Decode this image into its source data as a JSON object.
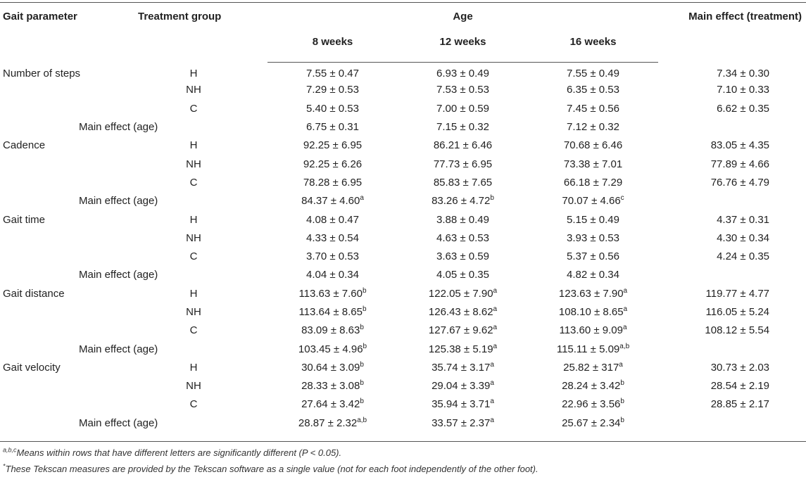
{
  "header": {
    "col_param": "Gait parameter",
    "col_group": "Treatment group",
    "col_age": "Age",
    "col_main": "Main effect (treatment)",
    "weeks": [
      "8 weeks",
      "12 weeks",
      "16 weeks"
    ]
  },
  "rows": [
    {
      "param": "Number of steps",
      "group": "H",
      "v": [
        [
          "7.55 ± 0.47",
          ""
        ],
        [
          "6.93 ± 0.49",
          ""
        ],
        [
          "7.55 ± 0.49",
          ""
        ]
      ],
      "main": "7.34 ± 0.30"
    },
    {
      "param": "",
      "group": "NH",
      "v": [
        [
          "7.29 ± 0.53",
          ""
        ],
        [
          "7.53 ± 0.53",
          ""
        ],
        [
          "6.35 ± 0.53",
          ""
        ]
      ],
      "main": "7.10 ± 0.33"
    },
    {
      "param": "",
      "group": "C",
      "v": [
        [
          "5.40 ± 0.53",
          ""
        ],
        [
          "7.00 ± 0.59",
          ""
        ],
        [
          "7.45 ± 0.56",
          ""
        ]
      ],
      "main": "6.62 ± 0.35"
    },
    {
      "age_label": "Main effect (age)",
      "v": [
        [
          "6.75 ± 0.31",
          ""
        ],
        [
          "7.15 ± 0.32",
          ""
        ],
        [
          "7.12 ± 0.32",
          ""
        ]
      ],
      "main": ""
    },
    {
      "param": "Cadence",
      "group": "H",
      "v": [
        [
          "92.25 ± 6.95",
          ""
        ],
        [
          "86.21 ± 6.46",
          ""
        ],
        [
          "70.68 ± 6.46",
          ""
        ]
      ],
      "main": "83.05 ± 4.35"
    },
    {
      "param": "",
      "group": "NH",
      "v": [
        [
          "92.25 ± 6.26",
          ""
        ],
        [
          "77.73 ± 6.95",
          ""
        ],
        [
          "73.38 ± 7.01",
          ""
        ]
      ],
      "main": "77.89 ± 4.66"
    },
    {
      "param": "",
      "group": "C",
      "v": [
        [
          "78.28 ± 6.95",
          ""
        ],
        [
          "85.83 ± 7.65",
          ""
        ],
        [
          "66.18 ± 7.29",
          ""
        ]
      ],
      "main": "76.76 ± 4.79"
    },
    {
      "age_label": "Main effect (age)",
      "v": [
        [
          "84.37 ± 4.60",
          "a"
        ],
        [
          "83.26 ± 4.72",
          "b"
        ],
        [
          "70.07 ± 4.66",
          "c"
        ]
      ],
      "main": ""
    },
    {
      "param": "Gait time",
      "group": "H",
      "v": [
        [
          "4.08 ± 0.47",
          ""
        ],
        [
          "3.88 ± 0.49",
          ""
        ],
        [
          "5.15 ± 0.49",
          ""
        ]
      ],
      "main": "4.37 ± 0.31"
    },
    {
      "param": "",
      "group": "NH",
      "v": [
        [
          "4.33 ± 0.54",
          ""
        ],
        [
          "4.63 ± 0.53",
          ""
        ],
        [
          "3.93 ± 0.53",
          ""
        ]
      ],
      "main": "4.30 ± 0.34"
    },
    {
      "param": "",
      "group": "C",
      "v": [
        [
          "3.70 ± 0.53",
          ""
        ],
        [
          "3.63 ± 0.59",
          ""
        ],
        [
          "5.37 ± 0.56",
          ""
        ]
      ],
      "main": "4.24 ± 0.35"
    },
    {
      "age_label": "Main effect (age)",
      "v": [
        [
          "4.04 ± 0.34",
          ""
        ],
        [
          "4.05 ± 0.35",
          ""
        ],
        [
          "4.82 ± 0.34",
          ""
        ]
      ],
      "main": ""
    },
    {
      "param": "Gait distance",
      "group": "H",
      "v": [
        [
          "113.63 ± 7.60",
          "b"
        ],
        [
          "122.05 ± 7.90",
          "a"
        ],
        [
          "123.63 ± 7.90",
          "a"
        ]
      ],
      "main": "119.77 ± 4.77"
    },
    {
      "param": "",
      "group": "NH",
      "v": [
        [
          "113.64 ± 8.65",
          "b"
        ],
        [
          "126.43 ± 8.62",
          "a"
        ],
        [
          "108.10 ± 8.65",
          "a"
        ]
      ],
      "main": "116.05 ± 5.24"
    },
    {
      "param": "",
      "group": "C",
      "v": [
        [
          "83.09 ± 8.63",
          "b"
        ],
        [
          "127.67 ± 9.62",
          "a"
        ],
        [
          "113.60 ± 9.09",
          "a"
        ]
      ],
      "main": "108.12 ± 5.54"
    },
    {
      "age_label": "Main effect (age)",
      "v": [
        [
          "103.45 ± 4.96",
          "b"
        ],
        [
          "125.38 ± 5.19",
          "a"
        ],
        [
          "115.11 ± 5.09",
          "a,b"
        ]
      ],
      "main": ""
    },
    {
      "param": "Gait velocity",
      "group": "H",
      "v": [
        [
          "30.64 ± 3.09",
          "b"
        ],
        [
          "35.74 ± 3.17",
          "a"
        ],
        [
          "25.82 ± 317",
          "a"
        ]
      ],
      "main": "30.73 ± 2.03"
    },
    {
      "param": "",
      "group": "NH",
      "v": [
        [
          "28.33 ± 3.08",
          "b"
        ],
        [
          "29.04 ± 3.39",
          "a"
        ],
        [
          "28.24 ± 3.42",
          "b"
        ]
      ],
      "main": "28.54 ± 2.19"
    },
    {
      "param": "",
      "group": "C",
      "v": [
        [
          "27.64 ± 3.42",
          "b"
        ],
        [
          "35.94 ± 3.71",
          "a"
        ],
        [
          "22.96 ± 3.56",
          "b"
        ]
      ],
      "main": "28.85 ± 2.17"
    },
    {
      "age_label": "Main effect (age)",
      "v": [
        [
          "28.87 ± 2.32",
          "a,b"
        ],
        [
          "33.57 ± 2.37",
          "a"
        ],
        [
          "25.67 ± 2.34",
          "b"
        ]
      ],
      "main": ""
    }
  ],
  "footnotes": {
    "f1_sup": "a,b,c",
    "f1_text": "Means within rows that have different letters are significantly different (P < 0.05).",
    "f2_sup": "*",
    "f2_text": "These Tekscan measures are provided by the Tekscan software as a single value (not for each foot independently of the other foot)."
  }
}
